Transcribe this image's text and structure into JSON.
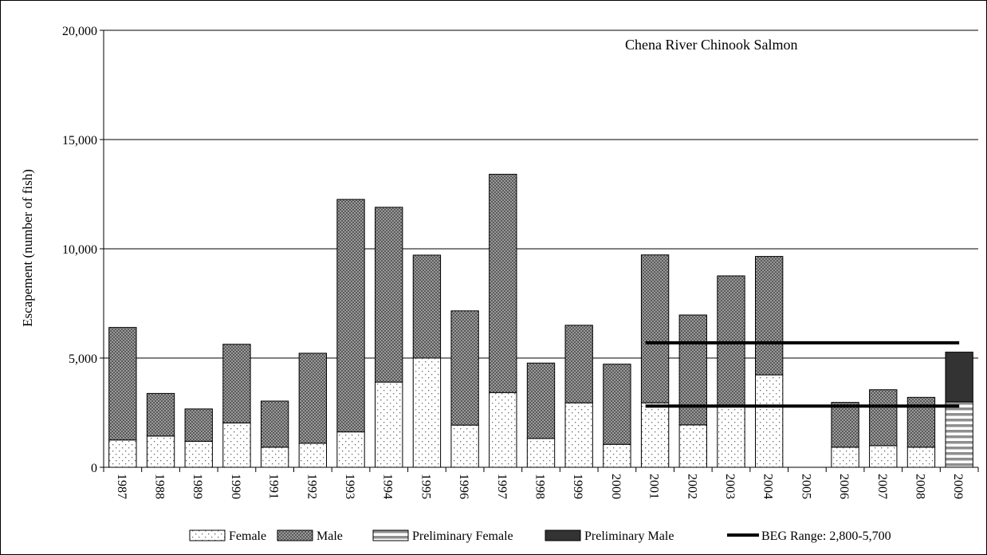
{
  "chart_data": {
    "type": "bar",
    "stacked": true,
    "title": "Chena River Chinook Salmon",
    "ylabel": "Escapement (number of fish)",
    "xlabel": "",
    "ylim": [
      0,
      20000
    ],
    "yticks": [
      0,
      5000,
      10000,
      15000,
      20000
    ],
    "ytick_labels": [
      "0",
      "5,000",
      "10,000",
      "15,000",
      "20,000"
    ],
    "grid": true,
    "legend_position": "bottom",
    "categories": [
      "1987",
      "1988",
      "1989",
      "1990",
      "1991",
      "1992",
      "1993",
      "1994",
      "1995",
      "1996",
      "1997",
      "1998",
      "1999",
      "2000",
      "2001",
      "2002",
      "2003",
      "2004",
      "2005",
      "2006",
      "2007",
      "2008",
      "2009"
    ],
    "series": [
      {
        "name": "Female",
        "values": [
          1250,
          1430,
          1190,
          2030,
          920,
          1100,
          1620,
          3900,
          5000,
          1930,
          3420,
          1320,
          2950,
          1050,
          2950,
          1940,
          2800,
          4230,
          0,
          920,
          990,
          920,
          0
        ]
      },
      {
        "name": "Male",
        "values": [
          5150,
          1950,
          1480,
          3600,
          2110,
          4120,
          10640,
          8000,
          4710,
          5230,
          9990,
          3450,
          3550,
          3670,
          6770,
          5030,
          5960,
          5420,
          0,
          2050,
          2560,
          2280,
          0
        ]
      },
      {
        "name": "Preliminary Female",
        "values": [
          0,
          0,
          0,
          0,
          0,
          0,
          0,
          0,
          0,
          0,
          0,
          0,
          0,
          0,
          0,
          0,
          0,
          0,
          0,
          0,
          0,
          0,
          3000
        ]
      },
      {
        "name": "Preliminary Male",
        "values": [
          0,
          0,
          0,
          0,
          0,
          0,
          0,
          0,
          0,
          0,
          0,
          0,
          0,
          0,
          0,
          0,
          0,
          0,
          0,
          0,
          0,
          0,
          2270
        ]
      }
    ],
    "reference_range": {
      "name": "BEG Range: 2,800-5,700",
      "low": 2800,
      "high": 5700,
      "start_category": "2001",
      "end_category": "2009"
    }
  }
}
